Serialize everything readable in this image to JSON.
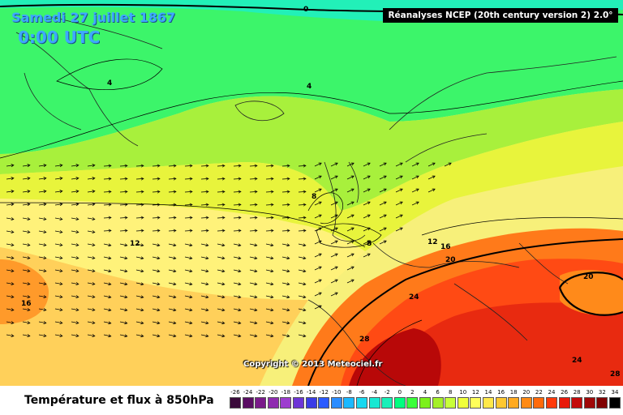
{
  "header": {
    "date": "Samedi 27 juillet 1867",
    "time": "0:00 UTC",
    "source": "Réanalyses NCEP (20th century version 2) 2.0°"
  },
  "footer": {
    "title": "Température et flux à 850hPa",
    "copyright": "Copyright © 2013 Meteociel.fr"
  },
  "contour_labels": [
    "0",
    "4",
    "4",
    "8",
    "8",
    "12",
    "12",
    "16",
    "16",
    "20",
    "20",
    "24",
    "24",
    "28",
    "28"
  ],
  "scale": {
    "labels": [
      "-26",
      "-24",
      "-22",
      "-20",
      "-18",
      "-16",
      "-14",
      "-12",
      "-10",
      "-8",
      "-6",
      "-4",
      "-2",
      "0",
      "2",
      "4",
      "6",
      "8",
      "10",
      "12",
      "14",
      "16",
      "18",
      "20",
      "22",
      "24",
      "26",
      "28",
      "30",
      "32",
      "34"
    ],
    "colors": [
      "#3a0a3a",
      "#5a0d63",
      "#7a1a8a",
      "#8f2bb0",
      "#9d3ccf",
      "#6d35d6",
      "#3a3ce6",
      "#2a5aff",
      "#2a8cff",
      "#1ab8ff",
      "#18d8f0",
      "#17e8d2",
      "#18f0b8",
      "#00ff80",
      "#3aff3a",
      "#7cf01a",
      "#a4f028",
      "#c8ff3a",
      "#f0ff3a",
      "#ffff5a",
      "#ffe84a",
      "#ffc830",
      "#ffaa20",
      "#ff8a14",
      "#ff6a0a",
      "#ff3a0a",
      "#e81a0a",
      "#c40a0a",
      "#a00808",
      "#800000",
      "#000000"
    ]
  }
}
